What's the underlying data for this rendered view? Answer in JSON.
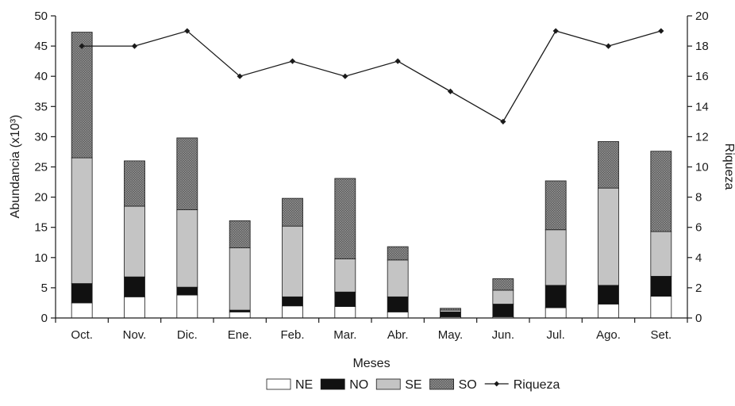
{
  "chart_data": {
    "type": "bar",
    "stacked": true,
    "categories": [
      "Oct.",
      "Nov.",
      "Dic.",
      "Ene.",
      "Feb.",
      "Mar.",
      "Abr.",
      "May.",
      "Jun.",
      "Jul.",
      "Ago.",
      "Set."
    ],
    "xlabel": "Meses",
    "ylabel_left": "Abundancia (x10³)",
    "ylabel_right": "Riqueza",
    "ylim_left": [
      0,
      50
    ],
    "ylim_right": [
      0,
      20
    ],
    "yticks_left": [
      "0",
      "5",
      "10",
      "15",
      "20",
      "25",
      "30",
      "35",
      "40",
      "45",
      "50"
    ],
    "yticks_right": [
      "0",
      "2",
      "4",
      "6",
      "8",
      "10",
      "12",
      "14",
      "16",
      "18",
      "20"
    ],
    "grid": false,
    "legend_position": "bottom",
    "series": [
      {
        "name": "NE",
        "color": "#ffffff",
        "pattern": "none",
        "values": [
          2.5,
          3.5,
          3.8,
          1.0,
          2.0,
          1.9,
          1.0,
          0.2,
          0.2,
          1.7,
          2.3,
          3.6
        ]
      },
      {
        "name": "NO",
        "color": "#111111",
        "pattern": "none",
        "values": [
          3.2,
          3.3,
          1.3,
          0.3,
          1.5,
          2.4,
          2.5,
          0.8,
          2.1,
          3.7,
          3.1,
          3.3
        ]
      },
      {
        "name": "SE",
        "color": "#c4c4c4",
        "pattern": "none",
        "values": [
          20.8,
          11.7,
          12.8,
          10.3,
          11.7,
          5.5,
          6.1,
          0.3,
          2.3,
          9.2,
          16.1,
          7.4
        ]
      },
      {
        "name": "SO",
        "color": "#6b6b6b",
        "pattern": "crosshatch",
        "values": [
          20.8,
          7.5,
          11.9,
          4.5,
          4.6,
          13.3,
          2.2,
          0.3,
          1.9,
          8.1,
          7.7,
          13.3
        ]
      }
    ],
    "line_series": {
      "name": "Riqueza",
      "axis": "right",
      "color": "#1a1a1a",
      "values": [
        18,
        18,
        19,
        16,
        17,
        16,
        17,
        15,
        13,
        19,
        18,
        19
      ]
    }
  }
}
